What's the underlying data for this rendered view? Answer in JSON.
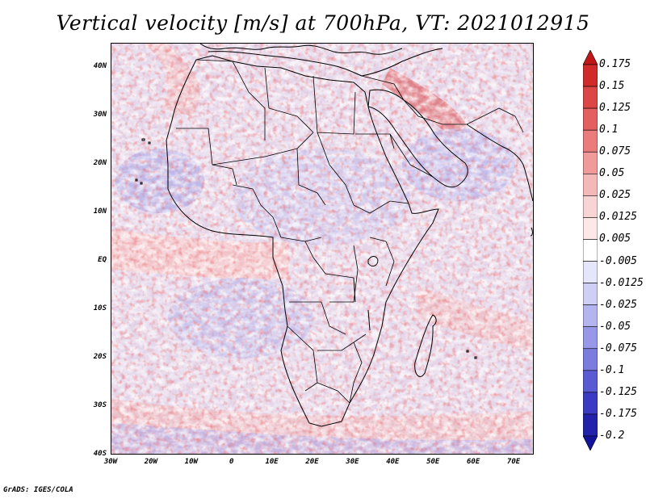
{
  "title": "Vertical velocity [m/s] at 700hPa, VT: 2021012915",
  "map": {
    "projection": "lat-lon",
    "lat_range": [
      -40,
      45
    ],
    "lon_range": [
      -30,
      75
    ],
    "lat_ticks": [
      {
        "value": 40,
        "label": "40N"
      },
      {
        "value": 30,
        "label": "30N"
      },
      {
        "value": 20,
        "label": "20N"
      },
      {
        "value": 10,
        "label": "10N"
      },
      {
        "value": 0,
        "label": "EQ"
      },
      {
        "value": -10,
        "label": "10S"
      },
      {
        "value": -20,
        "label": "20S"
      },
      {
        "value": -30,
        "label": "30S"
      },
      {
        "value": -40,
        "label": "40S"
      }
    ],
    "lon_ticks": [
      {
        "value": -30,
        "label": "30W"
      },
      {
        "value": -20,
        "label": "20W"
      },
      {
        "value": -10,
        "label": "10W"
      },
      {
        "value": 0,
        "label": "0"
      },
      {
        "value": 10,
        "label": "10E"
      },
      {
        "value": 20,
        "label": "20E"
      },
      {
        "value": 30,
        "label": "30E"
      },
      {
        "value": 40,
        "label": "40E"
      },
      {
        "value": 50,
        "label": "50E"
      },
      {
        "value": 60,
        "label": "60E"
      },
      {
        "value": 70,
        "label": "70E"
      }
    ]
  },
  "colorbar": {
    "levels": [
      "0.175",
      "0.15",
      "0.125",
      "0.1",
      "0.075",
      "0.05",
      "0.025",
      "0.0125",
      "0.005",
      "-0.005",
      "-0.0125",
      "-0.025",
      "-0.05",
      "-0.075",
      "-0.1",
      "-0.125",
      "-0.175",
      "-0.2"
    ],
    "colors": [
      "#c01818",
      "#d02a2a",
      "#dc4646",
      "#e46060",
      "#ea7c7c",
      "#f09a9a",
      "#f5b8b8",
      "#f9d4d4",
      "#fde8e8",
      "#ffffff",
      "#e6e6fa",
      "#cfcff6",
      "#b4b4ef",
      "#9898e8",
      "#7c7cdf",
      "#5a5ad2",
      "#3a3ac2",
      "#2222aa",
      "#14149a"
    ]
  },
  "footer": "GrADS: IGES/COLA"
}
